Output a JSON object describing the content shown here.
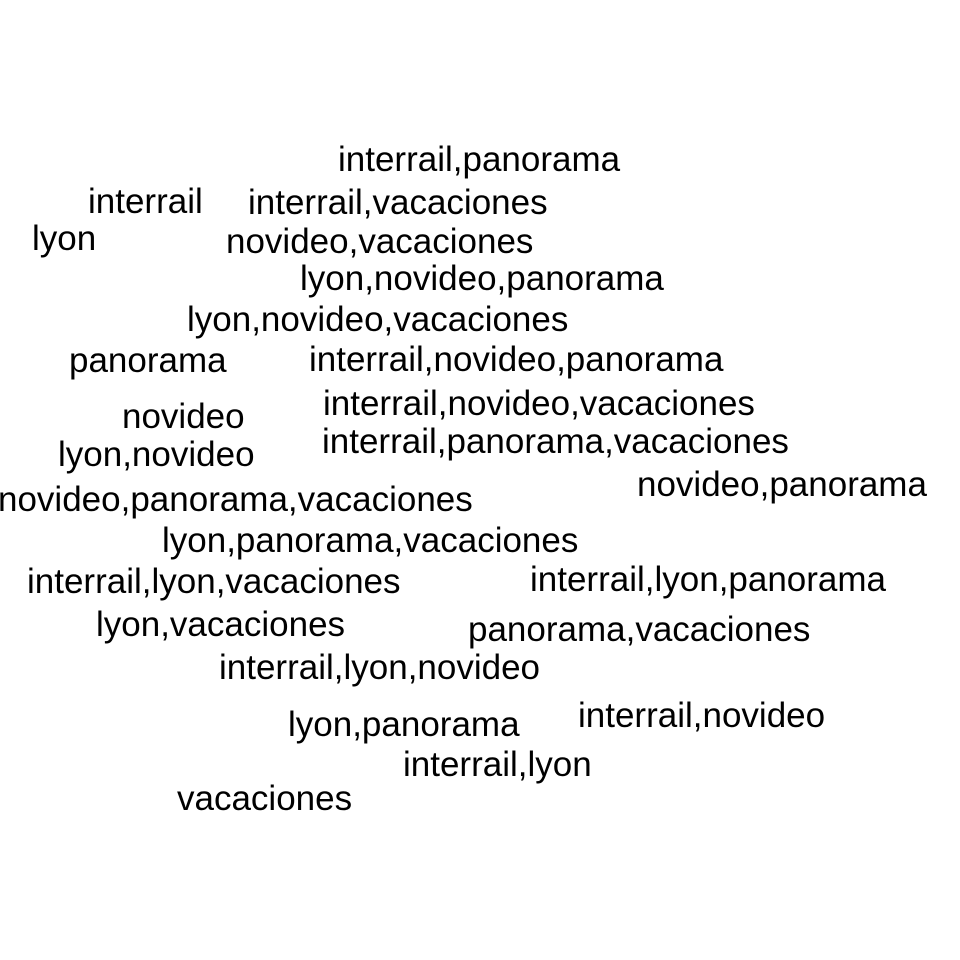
{
  "text_color": "#000000",
  "background_color": "#ffffff",
  "words": [
    "interrail,panorama",
    "interrail",
    "interrail,vacaciones",
    "lyon",
    "novideo,vacaciones",
    "lyon,novideo,panorama",
    "lyon,novideo,vacaciones",
    "panorama",
    "interrail,novideo,panorama",
    "novideo",
    "interrail,novideo,vacaciones",
    "lyon,novideo",
    "interrail,panorama,vacaciones",
    "novideo,panorama",
    "novideo,panorama,vacaciones",
    "lyon,panorama,vacaciones",
    "interrail,lyon,vacaciones",
    "interrail,lyon,panorama",
    "lyon,vacaciones",
    "panorama,vacaciones",
    "interrail,lyon,novideo",
    "lyon,panorama",
    "interrail,novideo",
    "interrail,lyon",
    "vacaciones"
  ]
}
